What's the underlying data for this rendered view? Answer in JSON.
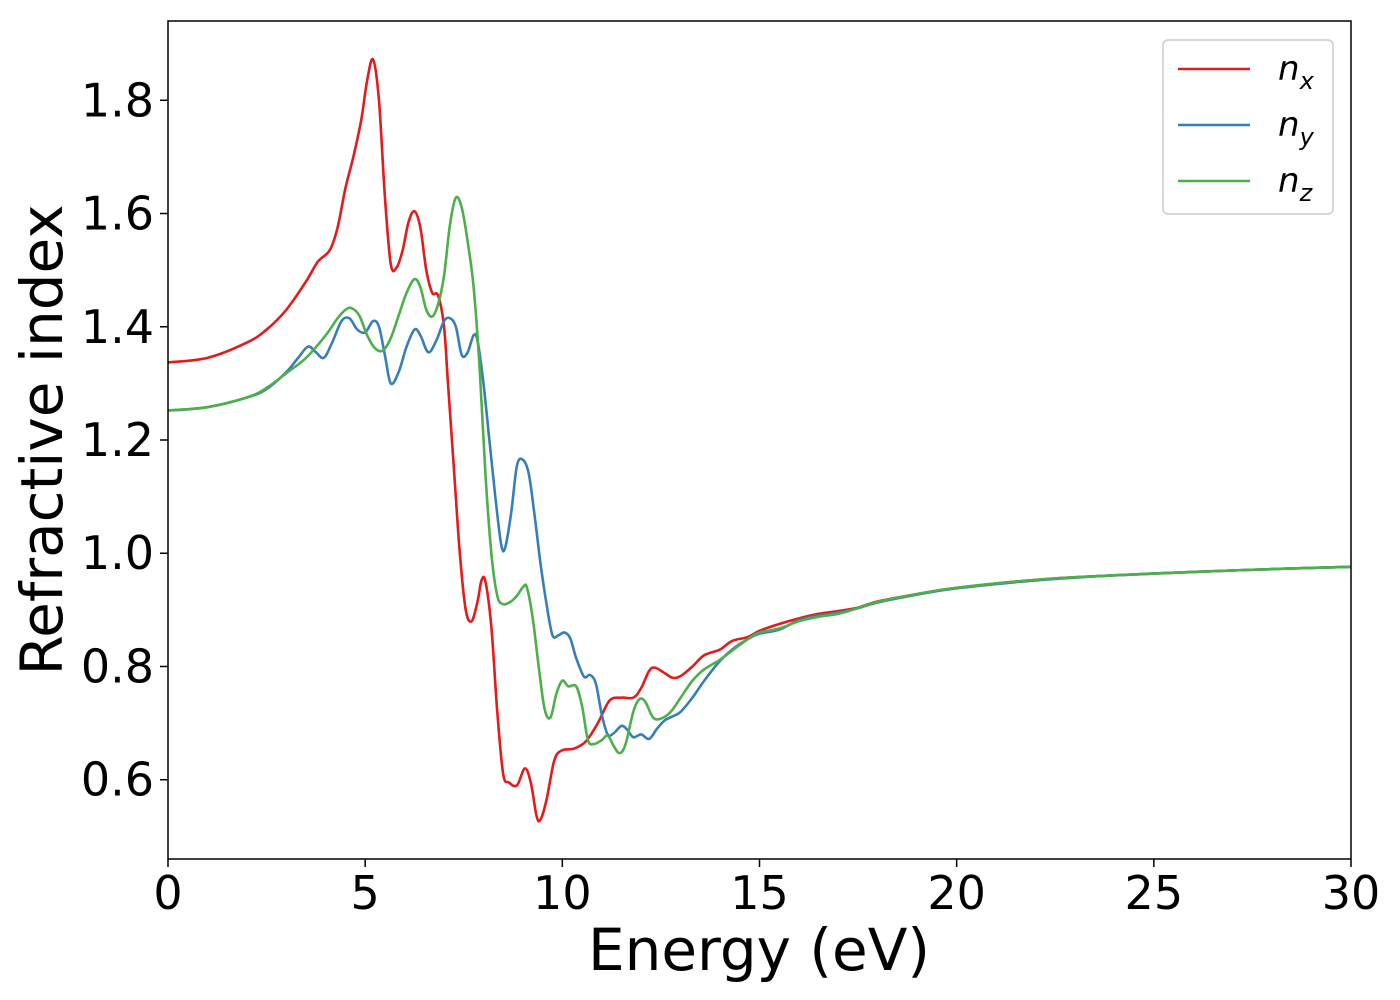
{
  "chart_data": {
    "type": "line",
    "title": "",
    "xlabel": "Energy (eV)",
    "ylabel": "Refractive index",
    "xlim": [
      0,
      30
    ],
    "ylim": [
      0.46,
      1.94
    ],
    "xticks": [
      0,
      5,
      10,
      15,
      20,
      25,
      30
    ],
    "xtick_labels": [
      "0",
      "5",
      "10",
      "15",
      "20",
      "25",
      "30"
    ],
    "yticks": [
      0.6,
      0.8,
      1.0,
      1.2,
      1.4,
      1.6,
      1.8
    ],
    "ytick_labels": [
      "0.6",
      "0.8",
      "1.0",
      "1.2",
      "1.4",
      "1.6",
      "1.8"
    ],
    "grid": false,
    "legend_position": "top-right",
    "series": [
      {
        "name": "n_x",
        "label_main": "n",
        "label_sub": "x",
        "color": "#e41a1c",
        "points": [
          [
            0,
            1.337
          ],
          [
            1,
            1.345
          ],
          [
            2,
            1.372
          ],
          [
            2.5,
            1.395
          ],
          [
            3,
            1.43
          ],
          [
            3.5,
            1.48
          ],
          [
            3.8,
            1.515
          ],
          [
            4.1,
            1.535
          ],
          [
            4.3,
            1.575
          ],
          [
            4.5,
            1.645
          ],
          [
            4.7,
            1.7
          ],
          [
            4.9,
            1.765
          ],
          [
            5.05,
            1.835
          ],
          [
            5.2,
            1.872
          ],
          [
            5.35,
            1.8
          ],
          [
            5.5,
            1.63
          ],
          [
            5.65,
            1.51
          ],
          [
            5.8,
            1.505
          ],
          [
            5.95,
            1.535
          ],
          [
            6.1,
            1.585
          ],
          [
            6.25,
            1.604
          ],
          [
            6.4,
            1.575
          ],
          [
            6.55,
            1.5
          ],
          [
            6.7,
            1.46
          ],
          [
            6.85,
            1.455
          ],
          [
            7.0,
            1.4
          ],
          [
            7.1,
            1.3
          ],
          [
            7.25,
            1.15
          ],
          [
            7.4,
            1.0
          ],
          [
            7.55,
            0.9
          ],
          [
            7.7,
            0.88
          ],
          [
            7.85,
            0.915
          ],
          [
            7.95,
            0.952
          ],
          [
            8.05,
            0.95
          ],
          [
            8.2,
            0.87
          ],
          [
            8.35,
            0.72
          ],
          [
            8.5,
            0.61
          ],
          [
            8.65,
            0.595
          ],
          [
            8.85,
            0.59
          ],
          [
            9.05,
            0.62
          ],
          [
            9.2,
            0.595
          ],
          [
            9.35,
            0.535
          ],
          [
            9.45,
            0.53
          ],
          [
            9.6,
            0.565
          ],
          [
            9.8,
            0.635
          ],
          [
            10.0,
            0.652
          ],
          [
            10.3,
            0.655
          ],
          [
            10.6,
            0.668
          ],
          [
            10.9,
            0.7
          ],
          [
            11.2,
            0.74
          ],
          [
            11.5,
            0.745
          ],
          [
            11.8,
            0.745
          ],
          [
            12.0,
            0.762
          ],
          [
            12.2,
            0.792
          ],
          [
            12.35,
            0.798
          ],
          [
            12.6,
            0.788
          ],
          [
            12.8,
            0.78
          ],
          [
            13.0,
            0.783
          ],
          [
            13.3,
            0.8
          ],
          [
            13.6,
            0.82
          ],
          [
            14.0,
            0.83
          ],
          [
            14.3,
            0.845
          ],
          [
            14.7,
            0.852
          ],
          [
            15.0,
            0.863
          ],
          [
            15.5,
            0.875
          ],
          [
            16.0,
            0.885
          ],
          [
            16.5,
            0.893
          ],
          [
            17.0,
            0.898
          ],
          [
            17.5,
            0.904
          ],
          [
            18.0,
            0.915
          ],
          [
            19.0,
            0.928
          ],
          [
            20.0,
            0.939
          ],
          [
            22.0,
            0.953
          ],
          [
            24.0,
            0.961
          ],
          [
            26.0,
            0.967
          ],
          [
            28.0,
            0.972
          ],
          [
            30.0,
            0.976
          ]
        ]
      },
      {
        "name": "n_y",
        "label_main": "n",
        "label_sub": "y",
        "color": "#377eb8",
        "points": [
          [
            0,
            1.252
          ],
          [
            1,
            1.258
          ],
          [
            2,
            1.275
          ],
          [
            2.5,
            1.29
          ],
          [
            3,
            1.32
          ],
          [
            3.3,
            1.345
          ],
          [
            3.55,
            1.365
          ],
          [
            3.75,
            1.355
          ],
          [
            3.95,
            1.345
          ],
          [
            4.15,
            1.37
          ],
          [
            4.4,
            1.41
          ],
          [
            4.6,
            1.415
          ],
          [
            4.8,
            1.395
          ],
          [
            5.0,
            1.39
          ],
          [
            5.2,
            1.41
          ],
          [
            5.35,
            1.4
          ],
          [
            5.5,
            1.35
          ],
          [
            5.65,
            1.3
          ],
          [
            5.85,
            1.32
          ],
          [
            6.05,
            1.365
          ],
          [
            6.25,
            1.395
          ],
          [
            6.4,
            1.385
          ],
          [
            6.6,
            1.355
          ],
          [
            6.8,
            1.375
          ],
          [
            7.0,
            1.41
          ],
          [
            7.15,
            1.415
          ],
          [
            7.3,
            1.4
          ],
          [
            7.45,
            1.35
          ],
          [
            7.6,
            1.355
          ],
          [
            7.75,
            1.385
          ],
          [
            7.85,
            1.375
          ],
          [
            8.0,
            1.3
          ],
          [
            8.15,
            1.2
          ],
          [
            8.3,
            1.1
          ],
          [
            8.45,
            1.015
          ],
          [
            8.55,
            1.01
          ],
          [
            8.7,
            1.07
          ],
          [
            8.85,
            1.155
          ],
          [
            9.0,
            1.165
          ],
          [
            9.15,
            1.14
          ],
          [
            9.3,
            1.065
          ],
          [
            9.45,
            0.98
          ],
          [
            9.6,
            0.91
          ],
          [
            9.75,
            0.855
          ],
          [
            9.9,
            0.855
          ],
          [
            10.05,
            0.86
          ],
          [
            10.2,
            0.85
          ],
          [
            10.35,
            0.815
          ],
          [
            10.55,
            0.782
          ],
          [
            10.7,
            0.785
          ],
          [
            10.85,
            0.77
          ],
          [
            11.0,
            0.715
          ],
          [
            11.15,
            0.68
          ],
          [
            11.3,
            0.682
          ],
          [
            11.5,
            0.695
          ],
          [
            11.65,
            0.688
          ],
          [
            11.8,
            0.675
          ],
          [
            12.0,
            0.68
          ],
          [
            12.2,
            0.672
          ],
          [
            12.4,
            0.69
          ],
          [
            12.6,
            0.705
          ],
          [
            12.8,
            0.712
          ],
          [
            13.0,
            0.72
          ],
          [
            13.3,
            0.745
          ],
          [
            13.6,
            0.775
          ],
          [
            14.0,
            0.81
          ],
          [
            14.4,
            0.835
          ],
          [
            14.8,
            0.852
          ],
          [
            15.0,
            0.858
          ],
          [
            15.5,
            0.865
          ],
          [
            16.0,
            0.882
          ],
          [
            16.5,
            0.89
          ],
          [
            17.0,
            0.895
          ],
          [
            17.5,
            0.903
          ],
          [
            18.0,
            0.913
          ],
          [
            19.0,
            0.927
          ],
          [
            20.0,
            0.938
          ],
          [
            22.0,
            0.952
          ],
          [
            24.0,
            0.961
          ],
          [
            26.0,
            0.967
          ],
          [
            28.0,
            0.972
          ],
          [
            30.0,
            0.976
          ]
        ]
      },
      {
        "name": "n_z",
        "label_main": "n",
        "label_sub": "z",
        "color": "#4daf4a",
        "points": [
          [
            0,
            1.252
          ],
          [
            1,
            1.258
          ],
          [
            2,
            1.275
          ],
          [
            2.5,
            1.292
          ],
          [
            3,
            1.318
          ],
          [
            3.5,
            1.345
          ],
          [
            4.0,
            1.385
          ],
          [
            4.3,
            1.415
          ],
          [
            4.5,
            1.43
          ],
          [
            4.65,
            1.433
          ],
          [
            4.85,
            1.42
          ],
          [
            5.05,
            1.385
          ],
          [
            5.25,
            1.362
          ],
          [
            5.45,
            1.358
          ],
          [
            5.65,
            1.38
          ],
          [
            5.85,
            1.42
          ],
          [
            6.05,
            1.46
          ],
          [
            6.25,
            1.484
          ],
          [
            6.4,
            1.47
          ],
          [
            6.55,
            1.43
          ],
          [
            6.7,
            1.418
          ],
          [
            6.85,
            1.44
          ],
          [
            7.0,
            1.49
          ],
          [
            7.15,
            1.58
          ],
          [
            7.3,
            1.628
          ],
          [
            7.45,
            1.61
          ],
          [
            7.6,
            1.55
          ],
          [
            7.75,
            1.47
          ],
          [
            7.9,
            1.33
          ],
          [
            8.05,
            1.14
          ],
          [
            8.2,
            1.0
          ],
          [
            8.35,
            0.925
          ],
          [
            8.5,
            0.91
          ],
          [
            8.7,
            0.915
          ],
          [
            8.85,
            0.925
          ],
          [
            9.0,
            0.94
          ],
          [
            9.1,
            0.94
          ],
          [
            9.25,
            0.885
          ],
          [
            9.4,
            0.8
          ],
          [
            9.55,
            0.725
          ],
          [
            9.7,
            0.71
          ],
          [
            9.85,
            0.752
          ],
          [
            10.0,
            0.775
          ],
          [
            10.15,
            0.765
          ],
          [
            10.35,
            0.765
          ],
          [
            10.5,
            0.73
          ],
          [
            10.65,
            0.67
          ],
          [
            10.8,
            0.663
          ],
          [
            11.0,
            0.67
          ],
          [
            11.15,
            0.678
          ],
          [
            11.3,
            0.66
          ],
          [
            11.45,
            0.647
          ],
          [
            11.6,
            0.662
          ],
          [
            11.8,
            0.72
          ],
          [
            11.95,
            0.742
          ],
          [
            12.1,
            0.738
          ],
          [
            12.3,
            0.71
          ],
          [
            12.5,
            0.708
          ],
          [
            12.75,
            0.72
          ],
          [
            13.0,
            0.745
          ],
          [
            13.3,
            0.775
          ],
          [
            13.6,
            0.795
          ],
          [
            14.0,
            0.812
          ],
          [
            14.4,
            0.833
          ],
          [
            14.8,
            0.853
          ],
          [
            15.0,
            0.86
          ],
          [
            15.5,
            0.867
          ],
          [
            16.0,
            0.88
          ],
          [
            16.5,
            0.888
          ],
          [
            17.0,
            0.893
          ],
          [
            17.5,
            0.903
          ],
          [
            18.0,
            0.914
          ],
          [
            19.0,
            0.928
          ],
          [
            20.0,
            0.939
          ],
          [
            22.0,
            0.953
          ],
          [
            24.0,
            0.961
          ],
          [
            26.0,
            0.967
          ],
          [
            28.0,
            0.972
          ],
          [
            30.0,
            0.976
          ]
        ]
      }
    ]
  }
}
